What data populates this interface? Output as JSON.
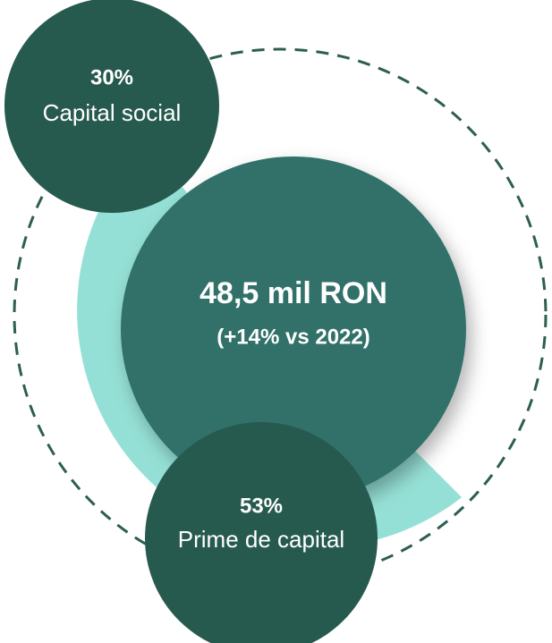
{
  "center": {
    "title": "48,5 mil RON",
    "subtitle": "(+14% vs 2022)"
  },
  "segments": [
    {
      "value_label": "30%",
      "label": "Capital social"
    },
    {
      "value_label": "53%",
      "label": "Prime de capital"
    }
  ]
}
